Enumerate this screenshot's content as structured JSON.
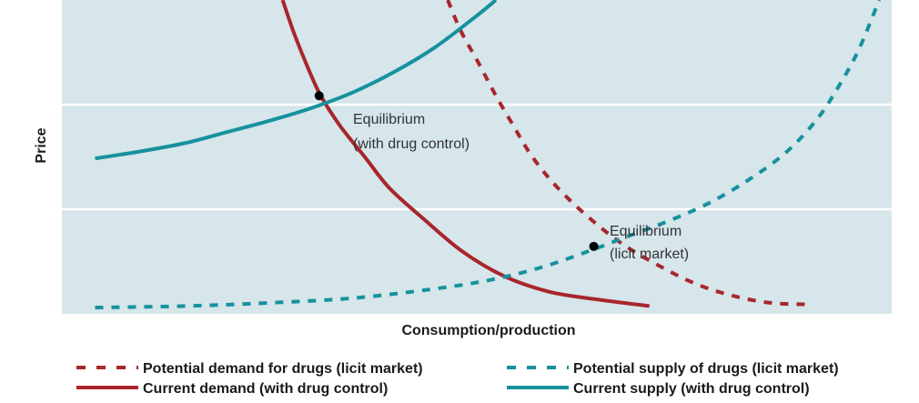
{
  "chart_data": {
    "type": "line",
    "xlabel": "Consumption/production",
    "ylabel": "Price",
    "grid": true,
    "legend_position": "bottom",
    "colors": {
      "plot_background": "#d6e6eb",
      "gridline": "#ffffff",
      "demand": "#a8262b",
      "supply": "#17919e",
      "equilibrium_point": "#000000"
    },
    "xlim": [
      0,
      100
    ],
    "ylim": [
      0,
      100
    ],
    "series": [
      {
        "name": "Potential demand for drugs (licit market)",
        "role": "potential_demand",
        "style": "dashed",
        "points": [
          [
            46.5,
            100
          ],
          [
            48.1,
            90
          ],
          [
            50.2,
            80
          ],
          [
            52.2,
            70
          ],
          [
            54.4,
            60
          ],
          [
            56.7,
            50
          ],
          [
            59.8,
            40
          ],
          [
            63.8,
            30
          ],
          [
            67.7,
            22
          ],
          [
            71.5,
            16
          ],
          [
            76,
            10
          ],
          [
            80.5,
            6
          ],
          [
            85.4,
            3.5
          ],
          [
            90.5,
            3
          ]
        ]
      },
      {
        "name": "Current demand (with drug control)",
        "role": "current_demand",
        "style": "solid",
        "points": [
          [
            26.6,
            100
          ],
          [
            27.9,
            90
          ],
          [
            29.4,
            80
          ],
          [
            31.1,
            70
          ],
          [
            33.5,
            60
          ],
          [
            36.5,
            50
          ],
          [
            39.5,
            40
          ],
          [
            43.7,
            30
          ],
          [
            48.2,
            20
          ],
          [
            53.3,
            12
          ],
          [
            58.8,
            7
          ],
          [
            64.8,
            4.5
          ],
          [
            70.8,
            2.5
          ]
        ]
      },
      {
        "name": "Potential supply of drugs (licit market)",
        "role": "potential_supply",
        "style": "dashed",
        "points": [
          [
            4,
            2
          ],
          [
            15,
            2.5
          ],
          [
            25,
            3.5
          ],
          [
            35,
            5
          ],
          [
            45,
            8
          ],
          [
            52,
            11
          ],
          [
            58,
            15
          ],
          [
            63.5,
            20
          ],
          [
            68.5,
            25
          ],
          [
            73.5,
            30
          ],
          [
            78.5,
            36
          ],
          [
            83.5,
            44
          ],
          [
            87.5,
            52
          ],
          [
            91,
            62
          ],
          [
            93.5,
            72
          ],
          [
            96,
            84
          ],
          [
            98.5,
            100
          ]
        ]
      },
      {
        "name": "Current supply (with drug control)",
        "role": "current_supply",
        "style": "solid",
        "points": [
          [
            4,
            49.5
          ],
          [
            10,
            52
          ],
          [
            15,
            54.5
          ],
          [
            20,
            58
          ],
          [
            25,
            61.5
          ],
          [
            30,
            65.5
          ],
          [
            35,
            70.5
          ],
          [
            40,
            77
          ],
          [
            45,
            85
          ],
          [
            50,
            95
          ],
          [
            52.3,
            100
          ]
        ]
      }
    ],
    "annotations": [
      {
        "role": "eq_control",
        "line1": "Equilibrium",
        "line2": "(with drug control)",
        "point": [
          31,
          69.5
        ]
      },
      {
        "role": "eq_licit",
        "line1": "Equilibrium",
        "line2": "(licit market)",
        "point": [
          64.1,
          21.5
        ]
      }
    ]
  }
}
